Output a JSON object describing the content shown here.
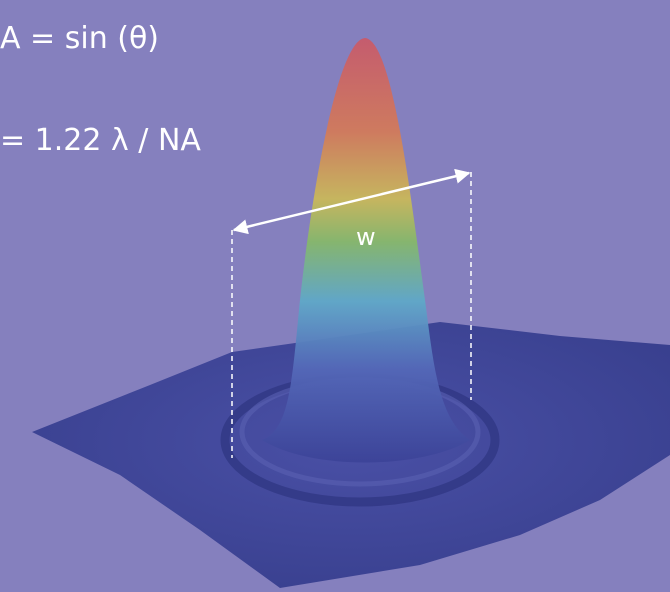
{
  "equations": [
    "A = sin (θ)",
    "= 1.22 λ / NA"
  ],
  "label": "w"
}
